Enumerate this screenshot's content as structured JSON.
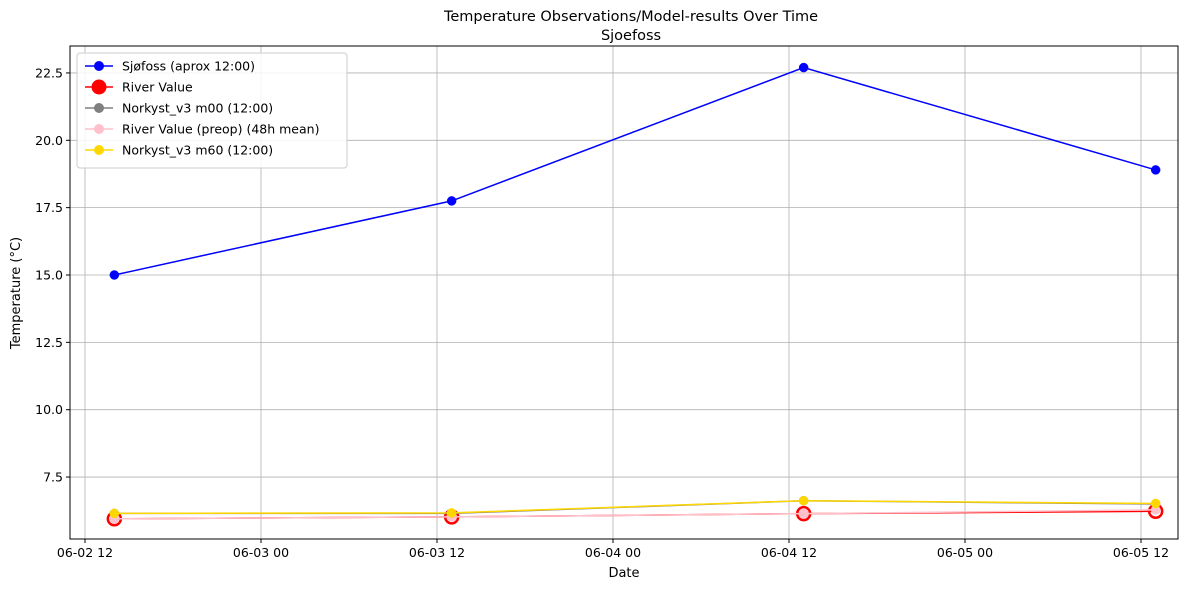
{
  "chart_data": {
    "type": "line",
    "title": "Temperature Observations/Model-results Over Time",
    "subtitle": "Sjoefoss",
    "xlabel": "Date",
    "ylabel": "Temperature (°C)",
    "x_ticks": [
      "06-02 12",
      "06-03 00",
      "06-03 12",
      "06-04 00",
      "06-04 12",
      "06-05 00",
      "06-05 12"
    ],
    "y_ticks": [
      "7.5",
      "10.0",
      "12.5",
      "15.0",
      "17.5",
      "20.0",
      "22.5"
    ],
    "ylim": [
      5.2,
      23.5
    ],
    "grid": true,
    "legend_position": "top-left",
    "x": [
      "2024-06-02 14:00",
      "2024-06-03 13:00",
      "2024-06-04 13:00",
      "2024-06-05 13:00"
    ],
    "series": [
      {
        "name": "Sjøfoss (aprox 12:00)",
        "color": "#0000ff",
        "marker": "circle",
        "values": [
          15.0,
          17.75,
          22.7,
          18.9
        ]
      },
      {
        "name": "River Value",
        "color": "#ff0000",
        "marker": "hollow-circle-large",
        "values": [
          5.95,
          6.02,
          6.14,
          6.23
        ]
      },
      {
        "name": "Norkyst_v3 m00 (12:00)",
        "color": "#808080",
        "marker": "circle",
        "values": [
          6.15,
          6.15,
          6.62,
          6.5
        ]
      },
      {
        "name": "River Value (preop) (48h mean)",
        "color": "#ffc0cb",
        "marker": "circle",
        "values": [
          5.95,
          6.02,
          6.14,
          6.28
        ]
      },
      {
        "name": "Norkyst_v3 m60 (12:00)",
        "color": "#ffd700",
        "marker": "circle",
        "values": [
          6.15,
          6.17,
          6.62,
          6.52
        ]
      }
    ]
  }
}
